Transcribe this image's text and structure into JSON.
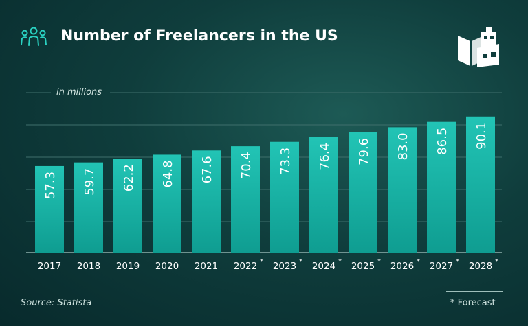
{
  "header": {
    "title": "Number of Freelancers in the US",
    "people_icon": "people-group-icon",
    "logo_icon": "book-box-logo-icon"
  },
  "footer": {
    "source": "Source: Statista",
    "forecast_note": "* Forecast"
  },
  "colors": {
    "bar_top": "#21c2b3",
    "bar_bottom": "#0f9d91",
    "accent": "#2ad1c1",
    "background": "#0f3d3c"
  },
  "chart_data": {
    "type": "bar",
    "unit_label": "in millions",
    "categories": [
      "2017",
      "2018",
      "2019",
      "2020",
      "2021",
      "2022",
      "2023",
      "2024",
      "2025",
      "2026",
      "2027",
      "2028"
    ],
    "forecast": [
      false,
      false,
      false,
      false,
      false,
      true,
      true,
      true,
      true,
      true,
      true,
      true
    ],
    "values": [
      57.3,
      59.7,
      62.2,
      64.8,
      67.6,
      70.4,
      73.3,
      76.4,
      79.6,
      83.0,
      86.5,
      90.1
    ],
    "value_labels": [
      "57.3",
      "59.7",
      "62.2",
      "64.8",
      "67.6",
      "70.4",
      "73.3",
      "76.4",
      "79.6",
      "83.0",
      "86.5",
      "90.1"
    ],
    "forecast_marker": "*",
    "grid": true,
    "legend": "none"
  }
}
